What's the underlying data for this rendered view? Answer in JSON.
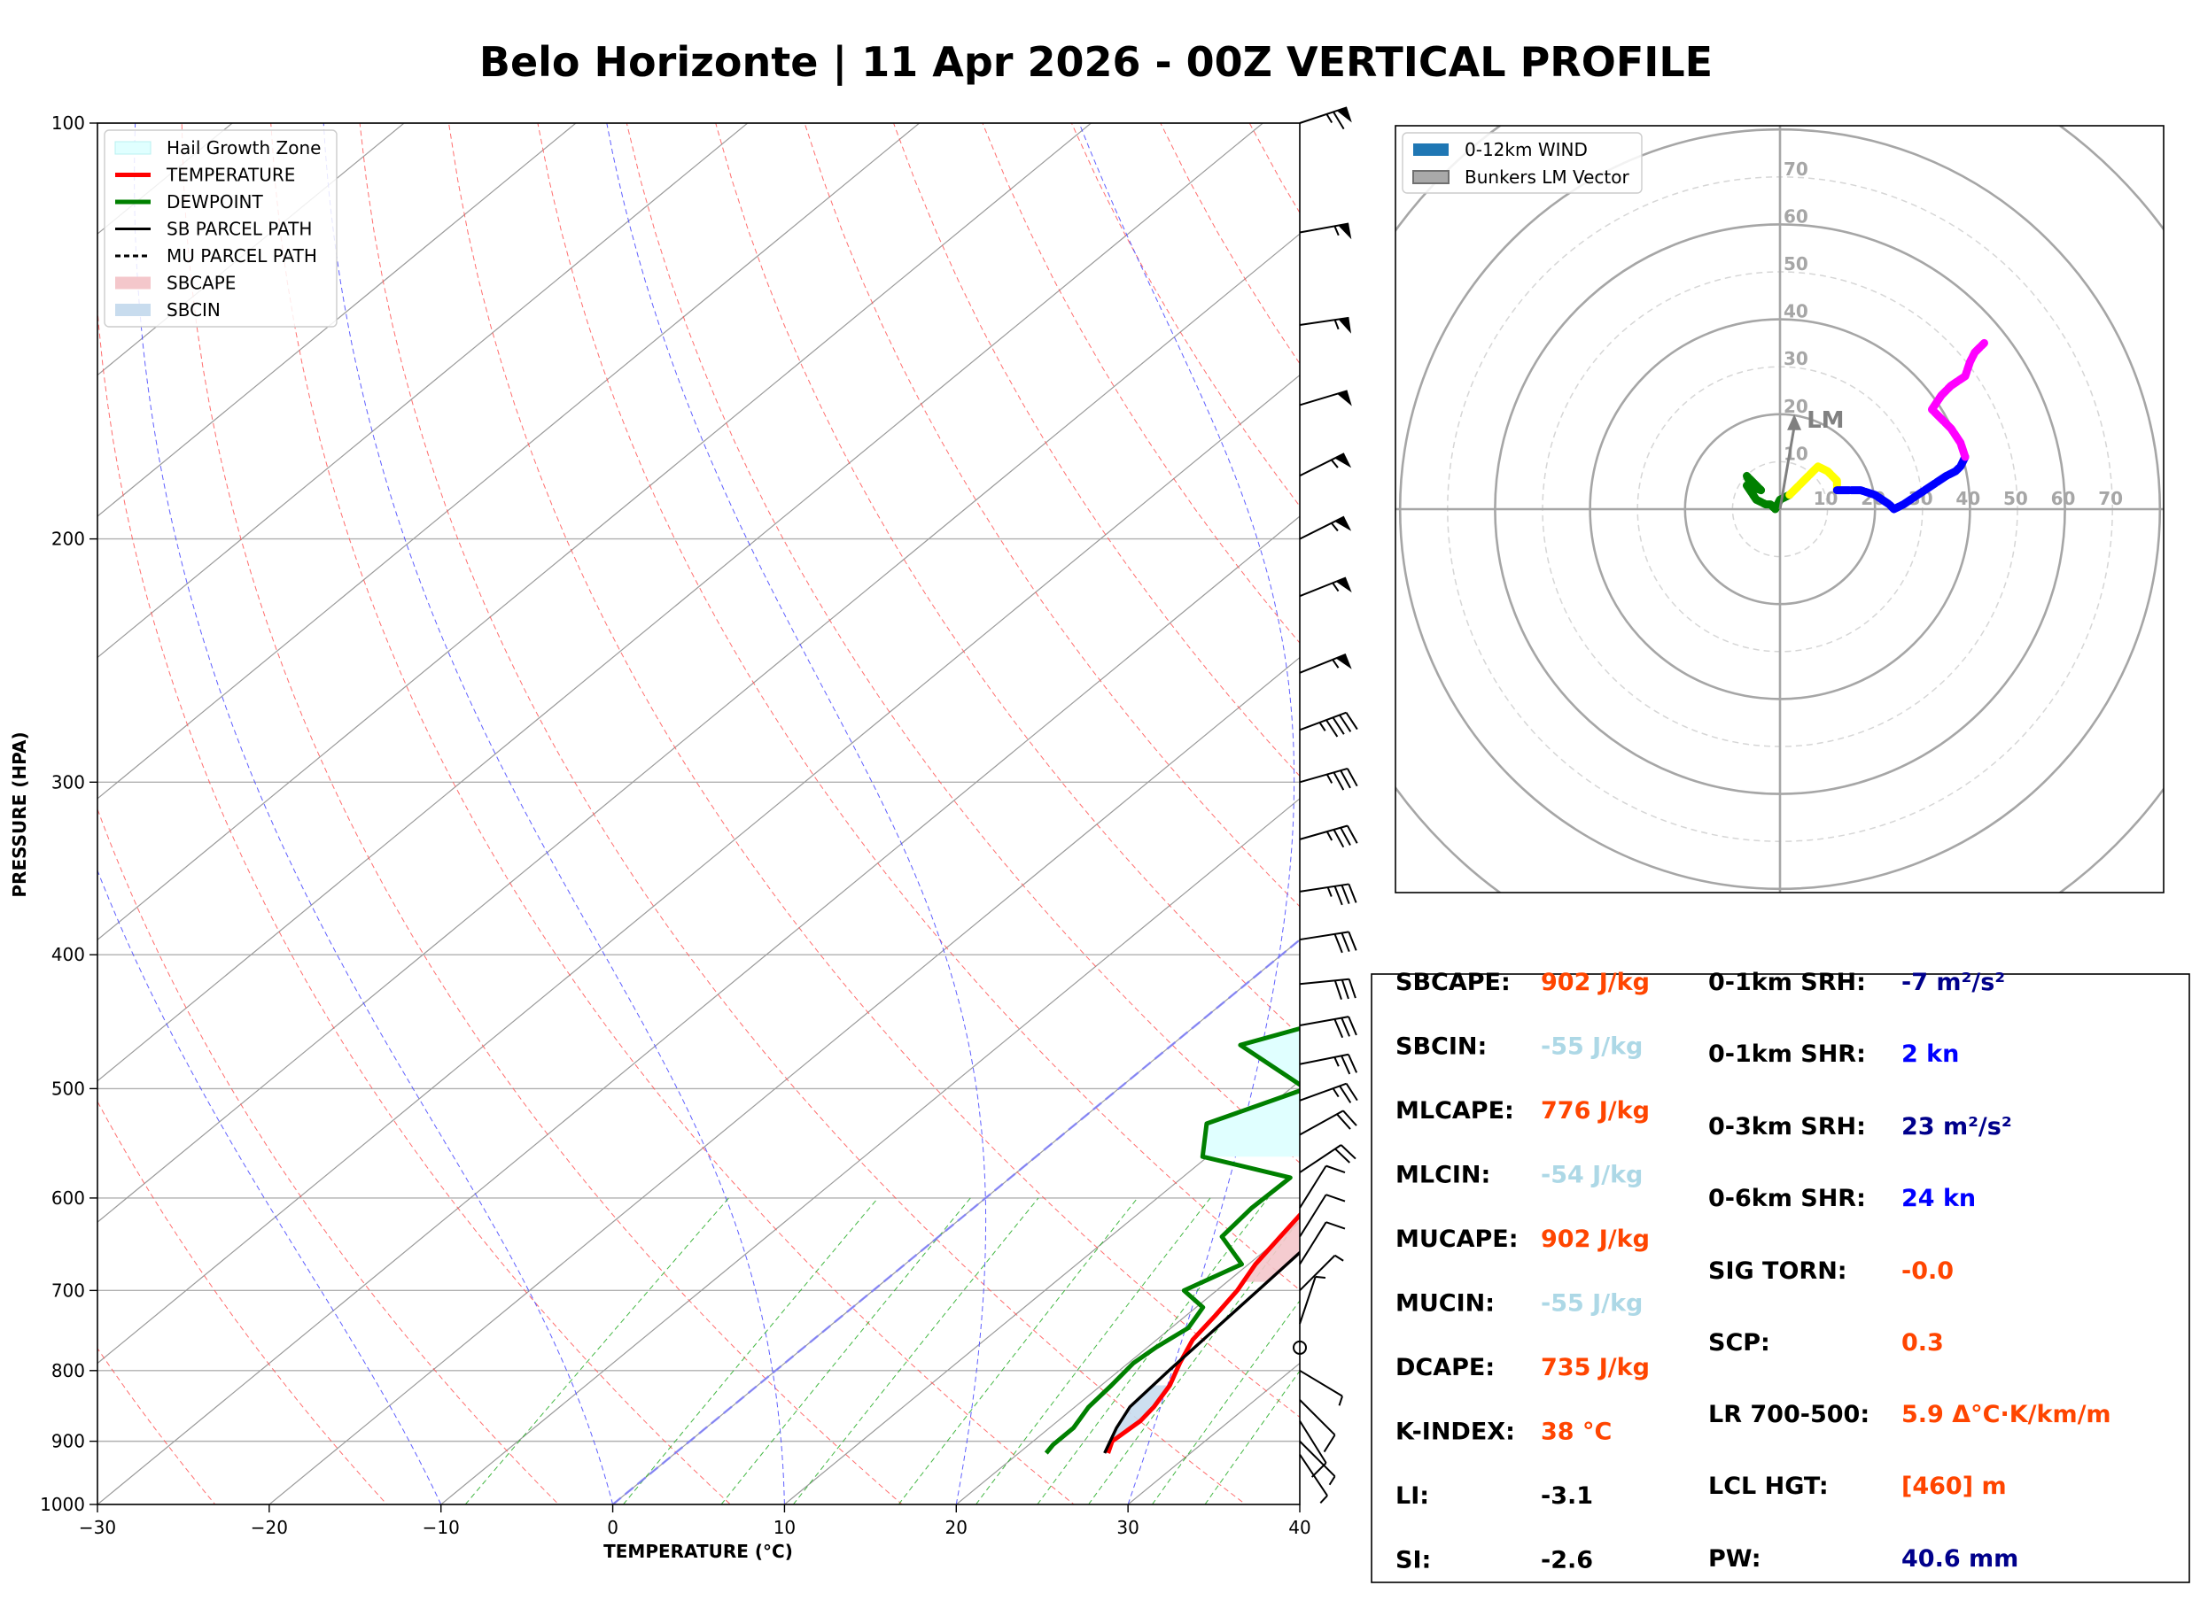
{
  "title": "Belo Horizonte | 11 Apr 2026 - 00Z VERTICAL PROFILE",
  "chart_data": [
    {
      "type": "line",
      "chart": "skew-T log-P sounding",
      "xlabel": "TEMPERATURE (°C)",
      "ylabel": "PRESSURE (HPA)",
      "xlim": [
        -30,
        40
      ],
      "ylim": [
        1000,
        100
      ],
      "y_scale": "log",
      "x_ticks": [
        "−30",
        "−20",
        "−10",
        "0",
        "10",
        "20",
        "30",
        "40"
      ],
      "y_ticks": [
        "100",
        "200",
        "300",
        "400",
        "500",
        "600",
        "700",
        "800",
        "900",
        "1000"
      ],
      "grid": true,
      "legend_position": "top-left",
      "legend": [
        {
          "label": "Hail Growth Zone",
          "color": "#e0ffff"
        },
        {
          "label": "TEMPERATURE",
          "color": "#ff0000"
        },
        {
          "label": "DEWPOINT",
          "color": "#008000"
        },
        {
          "label": "SB PARCEL PATH",
          "color": "#000000"
        },
        {
          "label": "MU PARCEL PATH",
          "color": "#000000"
        },
        {
          "label": "SBCAPE",
          "color": "#f4c7cb"
        },
        {
          "label": "SBCIN",
          "color": "#c8dcee"
        }
      ],
      "temperature": [
        [
          918,
          25.2
        ],
        [
          900,
          24.6
        ],
        [
          870,
          24.8
        ],
        [
          850,
          24.6
        ],
        [
          820,
          24
        ],
        [
          790,
          23
        ],
        [
          760,
          22.1
        ],
        [
          730,
          21.7
        ],
        [
          700,
          21.2
        ],
        [
          670,
          20.4
        ],
        [
          640,
          19.9
        ],
        [
          600,
          19.2
        ],
        [
          550,
          18.2
        ],
        [
          500,
          16.9
        ],
        [
          450,
          15.6
        ],
        [
          420,
          14.8
        ],
        [
          400,
          14.3
        ],
        [
          350,
          11.4
        ],
        [
          300,
          7.9
        ],
        [
          250,
          4
        ],
        [
          200,
          0.1
        ],
        [
          180,
          -1.5
        ],
        [
          150,
          -2.2
        ],
        [
          130,
          -1
        ],
        [
          115,
          -0.4
        ],
        [
          100,
          2.3
        ]
      ],
      "dewpoint": [
        [
          918,
          21.6
        ],
        [
          905,
          21.4
        ],
        [
          880,
          21.4
        ],
        [
          850,
          20.8
        ],
        [
          820,
          20.6
        ],
        [
          790,
          20.3
        ],
        [
          770,
          20.5
        ],
        [
          745,
          21
        ],
        [
          720,
          20.4
        ],
        [
          700,
          18.1
        ],
        [
          670,
          19.6
        ],
        [
          640,
          16.5
        ],
        [
          610,
          16.2
        ],
        [
          580,
          16.3
        ],
        [
          560,
          9.7
        ],
        [
          530,
          7.6
        ],
        [
          500,
          10.9
        ],
        [
          465,
          4
        ],
        [
          440,
          8.6
        ],
        [
          410,
          10.8
        ],
        [
          385,
          10.4
        ],
        [
          320,
          1.4
        ],
        [
          300,
          1.3
        ],
        [
          280,
          0.3
        ],
        [
          265,
          0.7
        ],
        [
          232,
          -7.7
        ],
        [
          180,
          -6.3
        ],
        [
          160,
          -6.7
        ],
        [
          145,
          -10.8
        ],
        [
          135,
          -11.9
        ],
        [
          125,
          -9.8
        ],
        [
          110,
          -7.4
        ],
        [
          100,
          -5.7
        ]
      ],
      "sb_parcel_path": [
        [
          918,
          25
        ],
        [
          880,
          23.9
        ],
        [
          850,
          23.2
        ],
        [
          800,
          22.9
        ],
        [
          700,
          22.4
        ],
        [
          600,
          21.8
        ],
        [
          500,
          20.1
        ],
        [
          400,
          16.9
        ],
        [
          300,
          10.6
        ],
        [
          250,
          6.5
        ],
        [
          200,
          0.1
        ],
        [
          150,
          -8.8
        ],
        [
          120,
          -15.9
        ],
        [
          100,
          -22.5
        ]
      ],
      "dry_adiabats_K": [
        250,
        260,
        270,
        280,
        290,
        300,
        310,
        320,
        330,
        340,
        350,
        360,
        370,
        380,
        390,
        400,
        410,
        420,
        430,
        440
      ],
      "moist_adiabats_C": [
        -10,
        0,
        10,
        20,
        30,
        40
      ],
      "mixing_lines_gkg": [
        2,
        4,
        6,
        8,
        12,
        16,
        20,
        24,
        30,
        36
      ],
      "wind_barbs": [
        {
          "p": 100,
          "u": -60,
          "v": -20
        },
        {
          "p": 120,
          "u": -55,
          "v": -10
        },
        {
          "p": 140,
          "u": -55,
          "v": -8
        },
        {
          "p": 160,
          "u": -50,
          "v": -15
        },
        {
          "p": 180,
          "u": -50,
          "v": -25
        },
        {
          "p": 200,
          "u": -50,
          "v": -25
        },
        {
          "p": 220,
          "u": -50,
          "v": -20
        },
        {
          "p": 250,
          "u": -50,
          "v": -20
        },
        {
          "p": 275,
          "u": -40,
          "v": -15
        },
        {
          "p": 300,
          "u": -35,
          "v": -10
        },
        {
          "p": 330,
          "u": -35,
          "v": -10
        },
        {
          "p": 360,
          "u": -33,
          "v": -5
        },
        {
          "p": 390,
          "u": -32,
          "v": -5
        },
        {
          "p": 420,
          "u": -30,
          "v": -3
        },
        {
          "p": 450,
          "u": -28,
          "v": -5
        },
        {
          "p": 480,
          "u": -25,
          "v": -5
        },
        {
          "p": 510,
          "u": -22,
          "v": -8
        },
        {
          "p": 540,
          "u": -18,
          "v": -10
        },
        {
          "p": 575,
          "u": -15,
          "v": -10
        },
        {
          "p": 610,
          "u": -5,
          "v": -8
        },
        {
          "p": 640,
          "u": -5,
          "v": -8
        },
        {
          "p": 670,
          "u": -5,
          "v": -8
        },
        {
          "p": 700,
          "u": -5,
          "v": -5
        },
        {
          "p": 740,
          "u": -2,
          "v": -6
        },
        {
          "p": 770,
          "u": 0,
          "v": 0
        },
        {
          "p": 800,
          "u": -5,
          "v": 3
        },
        {
          "p": 840,
          "u": -8,
          "v": 8
        },
        {
          "p": 870,
          "u": -5,
          "v": 8
        },
        {
          "p": 900,
          "u": -5,
          "v": 5
        },
        {
          "p": 920,
          "u": -4,
          "v": 6
        }
      ]
    },
    {
      "type": "hodograph",
      "ring_labels": [
        "10",
        "20",
        "30",
        "40",
        "50",
        "60",
        "70"
      ],
      "legend_position": "top-left",
      "legend": [
        {
          "label": "0-12km WIND",
          "color": "#1f77b4"
        },
        {
          "label": "Bunkers LM Vector",
          "color": "#a9a9a9"
        }
      ],
      "lm_label": "LM",
      "lm_vector": [
        3,
        20
      ],
      "segments": [
        {
          "color": "#008000",
          "points": [
            [
              -6,
              5
            ],
            [
              -7,
              7
            ],
            [
              -4,
              4
            ],
            [
              -7,
              5
            ],
            [
              -5,
              2
            ],
            [
              -3,
              1
            ],
            [
              -2,
              1
            ],
            [
              -1,
              0
            ],
            [
              0,
              2
            ],
            [
              2,
              3
            ]
          ]
        },
        {
          "color": "#ffff00",
          "points": [
            [
              2,
              3
            ],
            [
              3,
              4
            ],
            [
              5,
              6
            ],
            [
              7,
              8
            ],
            [
              8,
              9
            ],
            [
              10,
              8
            ],
            [
              12,
              6
            ],
            [
              12,
              4
            ]
          ]
        },
        {
          "color": "#0000ff",
          "points": [
            [
              12,
              4
            ],
            [
              14,
              4
            ],
            [
              17,
              4
            ],
            [
              20,
              3
            ],
            [
              23,
              1
            ],
            [
              24,
              0
            ],
            [
              26,
              1
            ],
            [
              29,
              3
            ],
            [
              32,
              5
            ],
            [
              35,
              7
            ],
            [
              37,
              8
            ],
            [
              38,
              9
            ],
            [
              39,
              11
            ]
          ]
        },
        {
          "color": "#ff00ff",
          "points": [
            [
              39,
              11
            ],
            [
              38,
              14
            ],
            [
              36,
              17
            ],
            [
              33,
              20
            ],
            [
              32,
              21
            ],
            [
              34,
              24
            ],
            [
              36,
              26
            ],
            [
              39,
              28
            ],
            [
              40,
              31
            ],
            [
              41,
              33
            ],
            [
              43,
              35
            ]
          ]
        }
      ]
    }
  ],
  "indices": {
    "col1": [
      {
        "label": "SBCAPE:",
        "value": "902 J/kg",
        "color": "#ff4500"
      },
      {
        "label": "SBCIN:",
        "value": "-55 J/kg",
        "color": "#add8e6"
      },
      {
        "label": "MLCAPE:",
        "value": "776 J/kg",
        "color": "#ff4500"
      },
      {
        "label": "MLCIN:",
        "value": "-54 J/kg",
        "color": "#add8e6"
      },
      {
        "label": "MUCAPE:",
        "value": "902 J/kg",
        "color": "#ff4500"
      },
      {
        "label": "MUCIN:",
        "value": "-55 J/kg",
        "color": "#add8e6"
      },
      {
        "label": "DCAPE:",
        "value": "735 J/kg",
        "color": "#ff4500"
      },
      {
        "label": "K-INDEX:",
        "value": "38 °C",
        "color": "#ff4500"
      },
      {
        "label": "LI:",
        "value": "-3.1",
        "color": "#000000"
      },
      {
        "label": "SI:",
        "value": "-2.6",
        "color": "#000000"
      }
    ],
    "col2": [
      {
        "label": "0-1km SRH:",
        "value": "-7 m²/s²",
        "color": "#00008b"
      },
      {
        "label": "0-1km SHR:",
        "value": "2 kn",
        "color": "#0000ff"
      },
      {
        "label": "0-3km SRH:",
        "value": "23 m²/s²",
        "color": "#00008b"
      },
      {
        "label": "0-6km SHR:",
        "value": "24 kn",
        "color": "#0000ff"
      },
      {
        "label": "SIG TORN:",
        "value": "-0.0",
        "color": "#ff4500"
      },
      {
        "label": "SCP:",
        "value": "0.3",
        "color": "#ff4500"
      },
      {
        "label": "LR 700-500:",
        "value": "5.9 Δ°C·K/km/m",
        "color": "#ff4500"
      },
      {
        "label": "LCL HGT:",
        "value": "[460] m",
        "color": "#ff4500"
      },
      {
        "label": "PW:",
        "value": "40.6 mm",
        "color": "#00008b"
      }
    ]
  }
}
